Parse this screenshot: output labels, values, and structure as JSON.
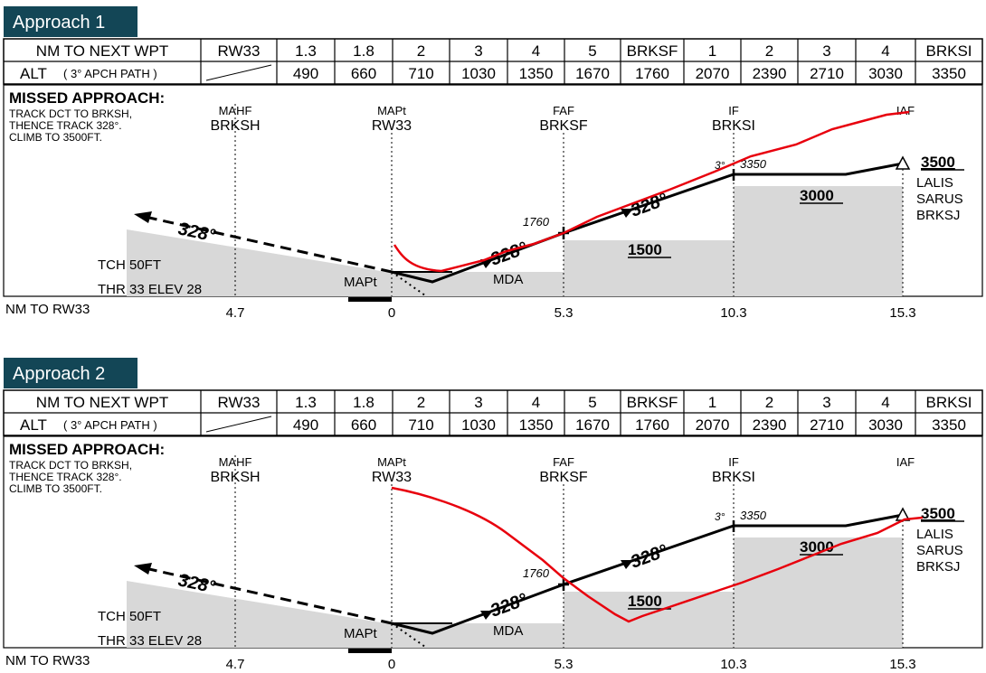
{
  "colors": {
    "tag_bg": "#134656",
    "profile_red": "#e8000d",
    "terrain_gray": "#d8d8d8"
  },
  "table": {
    "row1_label": "NM TO NEXT WPT",
    "row1": [
      "RW33",
      "1.3",
      "1.8",
      "2",
      "3",
      "4",
      "5",
      "BRKSF",
      "1",
      "2",
      "3",
      "4",
      "BRKSI"
    ],
    "row2_label": "ALT",
    "row2_note": "( 3° APCH PATH )",
    "row2": [
      "490",
      "660",
      "710",
      "1030",
      "1350",
      "1670",
      "1760",
      "2070",
      "2390",
      "2710",
      "3030",
      "3350"
    ]
  },
  "profile": {
    "missed_title": "MISSED APPROACH:",
    "missed_lines": [
      "TRACK DCT TO BRKSH,",
      "THENCE TRACK 328°.",
      "CLIMB TO 3500FT."
    ],
    "mahf_label": "MAHF",
    "mahf_fix": "BRKSH",
    "mapt_label": "MAPt",
    "mapt_fix": "RW33",
    "faf_label": "FAF",
    "faf_fix": "BRKSF",
    "if_label": "IF",
    "if_fix": "BRKSI",
    "iaf_label": "IAF",
    "track_328": "328°",
    "alt_1760": "1760",
    "alt_3350": "3350",
    "deg_3": "3°",
    "alt_3500": "3500",
    "alt_3000": "3000",
    "alt_1500": "1500",
    "iaf_fixes": [
      "LALIS",
      "SARUS",
      "BRKSJ"
    ],
    "tch": "TCH 50FT",
    "thr": "THR 33 ELEV 28",
    "mapt_small": "MAPt",
    "mda": "MDA",
    "axis_label": "NM TO RW33",
    "axis_ticks": [
      "4.7",
      "0",
      "5.3",
      "10.3",
      "15.3"
    ]
  },
  "panels": [
    {
      "tag": "Approach 1"
    },
    {
      "tag": "Approach 2"
    }
  ]
}
